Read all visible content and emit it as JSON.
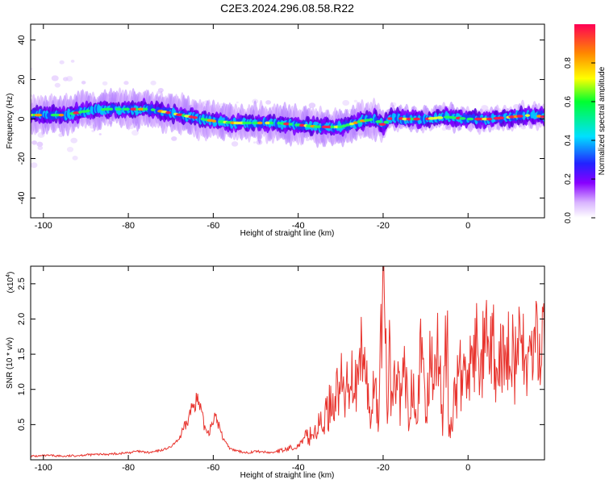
{
  "title": "C2E3.2024.296.08.58.R22",
  "chart_data": [
    {
      "type": "heatmap",
      "xlabel": "Height of straight line (km)",
      "ylabel": "Frequency (Hz)",
      "xlim": [
        -103,
        18
      ],
      "ylim": [
        -50,
        48
      ],
      "xticks": [
        -100,
        -80,
        -60,
        -40,
        -20,
        0
      ],
      "yticks": [
        -40,
        -20,
        0,
        20,
        40
      ],
      "colorbar": {
        "label": "Normalized spectral amplitude",
        "range": [
          0,
          1
        ],
        "ticks": [
          0.0,
          0.2,
          0.4,
          0.6,
          0.8
        ]
      },
      "ridge": {
        "x": [
          -102,
          -95,
          -90,
          -85,
          -80,
          -75,
          -70,
          -65,
          -60,
          -55,
          -50,
          -45,
          -40,
          -35,
          -30,
          -25,
          -22,
          -20,
          -18,
          -15,
          -10,
          -5,
          0,
          5,
          10,
          15,
          18
        ],
        "frequency_hz": [
          2,
          2,
          4,
          5,
          5,
          5,
          3,
          1,
          -1,
          -2,
          -2,
          -2,
          -3,
          -4,
          -4,
          -1,
          0,
          -3,
          1,
          0,
          0,
          1,
          0,
          0,
          1,
          2,
          1
        ]
      }
    },
    {
      "type": "line",
      "xlabel": "Height of straight line (km)",
      "ylabel": "SNR (10 * v/v)",
      "y_scale_note": "(x10",
      "y_scale_exp": "4",
      "xlim": [
        -103,
        18
      ],
      "ylim": [
        0,
        2.75
      ],
      "xticks": [
        -100,
        -80,
        -60,
        -40,
        -20,
        0
      ],
      "yticks": [
        0.5,
        1.0,
        1.5,
        2.0,
        2.5
      ],
      "series": [
        {
          "color": "#e8342e",
          "x": [
            -103,
            -98,
            -95,
            -90,
            -85,
            -82,
            -80,
            -78,
            -75,
            -72,
            -70,
            -68,
            -66,
            -65,
            -64,
            -63,
            -62,
            -61,
            -60,
            -59,
            -58,
            -56,
            -54,
            -52,
            -50,
            -48,
            -46,
            -45,
            -44,
            -42,
            -40,
            -38,
            -36,
            -34,
            -32,
            -31,
            -30,
            -29,
            -28,
            -27,
            -26,
            -25,
            -24,
            -23,
            -22,
            -21,
            -20.5,
            -20,
            -19.5,
            -19,
            -18.5,
            -18,
            -17,
            -16,
            -15,
            -14,
            -13,
            -12,
            -11,
            -10,
            -9,
            -8,
            -7,
            -6,
            -5,
            -4.5,
            -4,
            -3,
            -2,
            -1,
            0,
            1,
            2,
            3,
            4,
            5,
            6,
            7,
            8,
            9,
            10,
            11,
            12,
            13,
            14,
            15,
            16,
            17,
            18
          ],
          "values": [
            0.05,
            0.06,
            0.05,
            0.07,
            0.08,
            0.09,
            0.1,
            0.12,
            0.1,
            0.14,
            0.18,
            0.3,
            0.55,
            0.75,
            0.88,
            0.7,
            0.45,
            0.4,
            0.6,
            0.55,
            0.35,
            0.15,
            0.12,
            0.1,
            0.12,
            0.11,
            0.1,
            0.13,
            0.12,
            0.17,
            0.2,
            0.32,
            0.4,
            0.55,
            0.85,
            0.95,
            1.1,
            0.85,
            1.2,
            1.3,
            0.9,
            1.55,
            1.2,
            0.5,
            1.3,
            0.4,
            1.95,
            2.75,
            2.1,
            0.4,
            1.75,
            0.7,
            1.3,
            0.8,
            1.25,
            0.6,
            1.2,
            0.85,
            1.5,
            0.6,
            1.35,
            1.55,
            1.5,
            0.6,
            2.0,
            0.4,
            0.45,
            1.0,
            1.2,
            1.1,
            1.45,
            1.2,
            1.6,
            1.3,
            1.7,
            1.35,
            1.55,
            0.95,
            1.6,
            1.25,
            1.85,
            1.35,
            1.55,
            1.5,
            1.45,
            1.5,
            1.6,
            1.65,
            1.55
          ]
        }
      ]
    }
  ]
}
